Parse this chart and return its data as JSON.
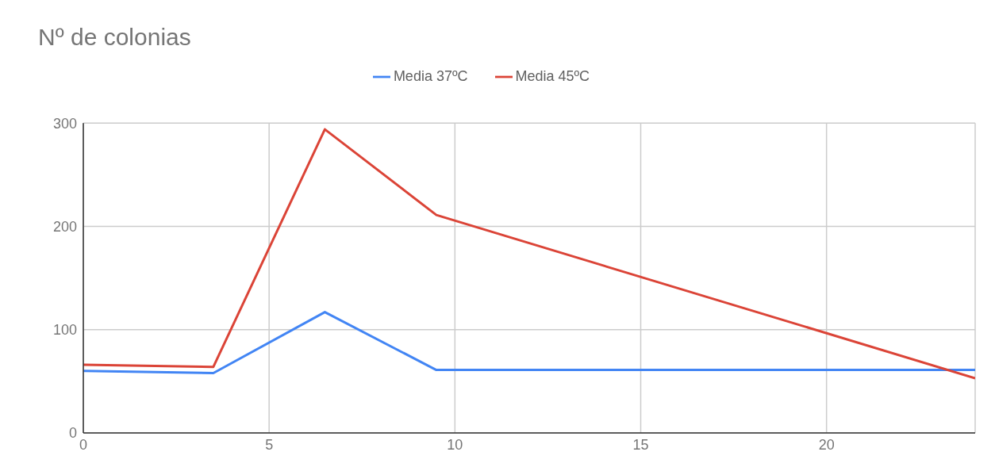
{
  "chart_data": {
    "type": "line",
    "title": "Nº de colonias",
    "x": [
      0,
      3.5,
      6.5,
      9.5,
      24
    ],
    "series": [
      {
        "name": "Media 37ºC",
        "color": "#4285f4",
        "values": [
          60,
          58,
          117,
          61,
          61
        ]
      },
      {
        "name": "Media 45ºC",
        "color": "#db4437",
        "values": [
          66,
          64,
          294,
          211,
          53
        ]
      }
    ],
    "xlim": [
      0,
      24
    ],
    "xticks": [
      0,
      5,
      10,
      15,
      20
    ],
    "ylim": [
      0,
      300
    ],
    "yticks": [
      0,
      100,
      200,
      300
    ],
    "grid": true,
    "legend": "top",
    "marker": "none",
    "line_style": "solid"
  }
}
